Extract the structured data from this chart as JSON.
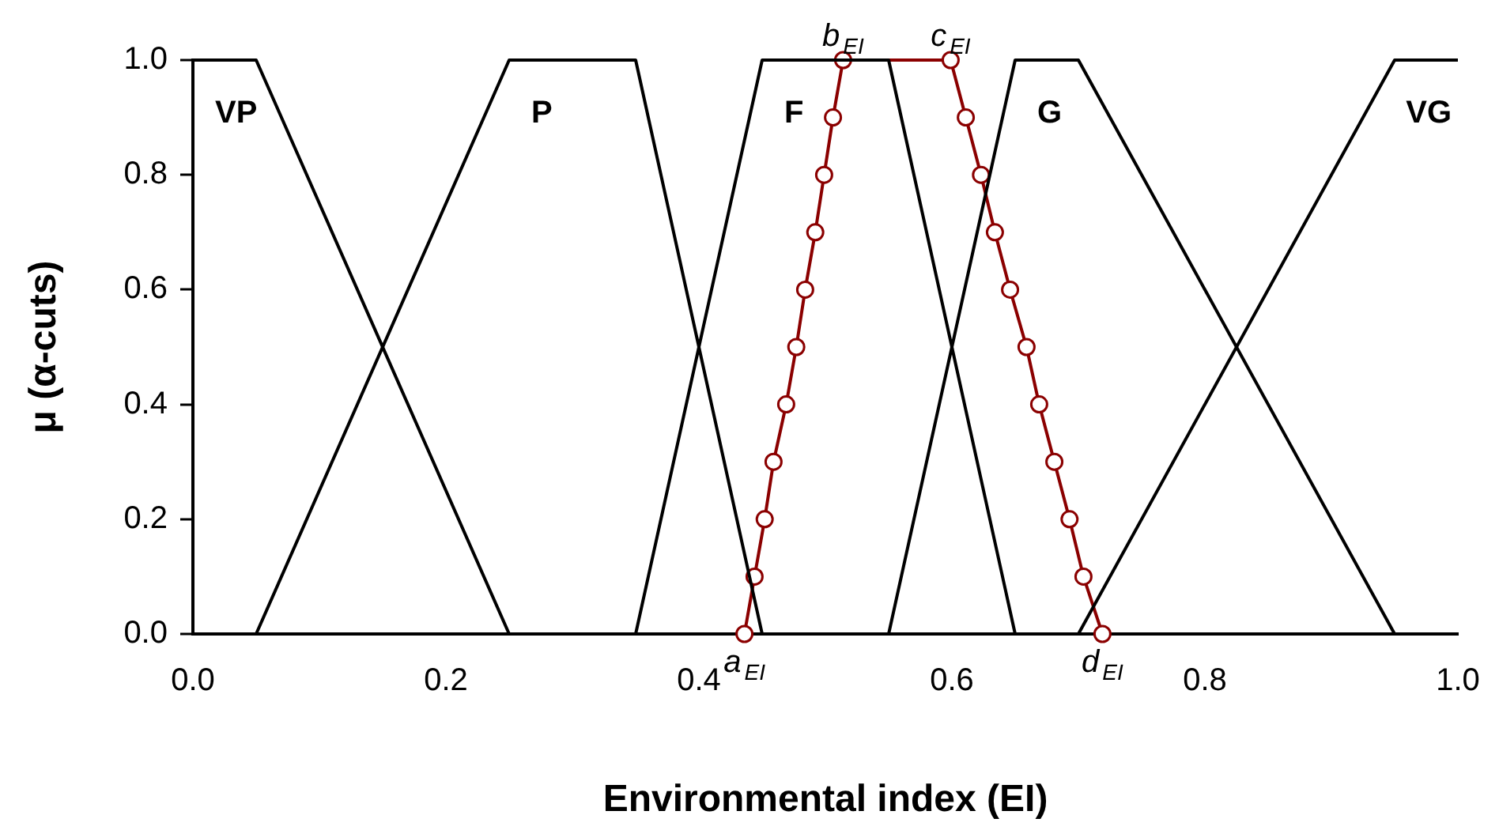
{
  "chart_data": {
    "type": "line",
    "xlabel": "Environmental index (EI)",
    "ylabel": "μ (α-cuts)",
    "xlim": [
      0,
      1
    ],
    "ylim": [
      0,
      1
    ],
    "xticks": [
      {
        "value": 0,
        "label": "0.0"
      },
      {
        "value": 0.2,
        "label": "0.2"
      },
      {
        "value": 0.4,
        "label": "0.4"
      },
      {
        "value": 0.6,
        "label": "0.6"
      },
      {
        "value": 0.8,
        "label": "0.8"
      },
      {
        "value": 1,
        "label": "1.0"
      }
    ],
    "yticks": [
      {
        "value": 0,
        "label": "0.0"
      },
      {
        "value": 0.2,
        "label": "0.2"
      },
      {
        "value": 0.4,
        "label": "0.4"
      },
      {
        "value": 0.6,
        "label": "0.6"
      },
      {
        "value": 0.8,
        "label": "0.8"
      },
      {
        "value": 1,
        "label": "1.0"
      }
    ],
    "grid": false,
    "legend": false,
    "series": [
      {
        "name": "VP",
        "color": "#000000",
        "marker": "none",
        "x": [
          0,
          0.05,
          0.25
        ],
        "values": [
          1,
          1,
          0
        ]
      },
      {
        "name": "P",
        "color": "#000000",
        "marker": "none",
        "x": [
          0.05,
          0.25,
          0.35,
          0.45
        ],
        "values": [
          0,
          1,
          1,
          0
        ]
      },
      {
        "name": "F",
        "color": "#000000",
        "marker": "none",
        "x": [
          0.35,
          0.45,
          0.55,
          0.65
        ],
        "values": [
          0,
          1,
          1,
          0
        ]
      },
      {
        "name": "G",
        "color": "#000000",
        "marker": "none",
        "x": [
          0.55,
          0.65,
          0.7,
          0.95
        ],
        "values": [
          0,
          1,
          1,
          0
        ]
      },
      {
        "name": "VG",
        "color": "#000000",
        "marker": "none",
        "x": [
          0.7,
          0.95,
          1
        ],
        "values": [
          0,
          1,
          1
        ]
      },
      {
        "color": "#8b0000",
        "marker": "circle",
        "x": [
          0.436,
          0.444,
          0.452,
          0.459,
          0.469,
          0.477,
          0.484,
          0.492,
          0.499,
          0.506,
          0.514,
          0.599,
          0.611,
          0.623,
          0.634,
          0.646,
          0.659,
          0.669,
          0.681,
          0.693,
          0.704,
          0.719
        ],
        "values": [
          0,
          0.1,
          0.2,
          0.3,
          0.4,
          0.5,
          0.6,
          0.7,
          0.8,
          0.9,
          1,
          1,
          0.9,
          0.8,
          0.7,
          0.6,
          0.5,
          0.4,
          0.3,
          0.2,
          0.1,
          0
        ]
      }
    ],
    "annotations": [
      {
        "text": "a$_{EI}$",
        "x": 0.436,
        "y": 0
      },
      {
        "text": "b$_{EI}$",
        "x": 0.514,
        "y": 1
      },
      {
        "text": "c$_{EI}$",
        "x": 0.599,
        "y": 1
      },
      {
        "text": "d$_{EI}$",
        "x": 0.719,
        "y": 0
      }
    ]
  }
}
